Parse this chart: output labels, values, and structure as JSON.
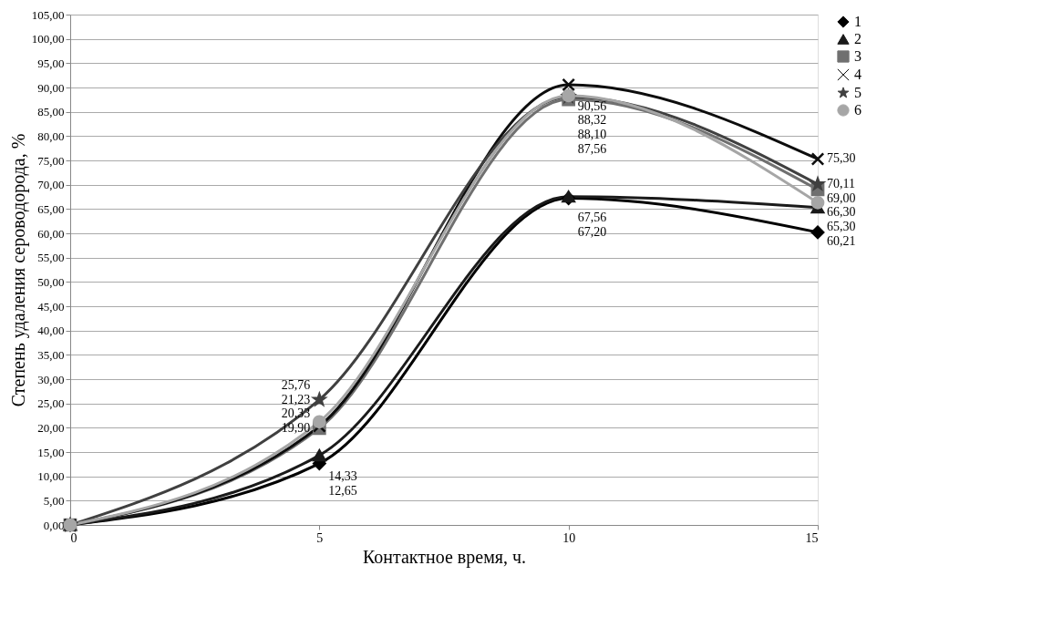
{
  "chart_data": {
    "type": "line",
    "xlabel": "Контактное время, ч.",
    "ylabel": "Степень удаления сероводорода, %",
    "x": [
      0,
      5,
      10,
      15
    ],
    "xlim": [
      0,
      15
    ],
    "xticks": [
      0,
      5,
      10,
      15
    ],
    "ylim": [
      0,
      105
    ],
    "yticks": [
      {
        "value": 0,
        "label": "0,00"
      },
      {
        "value": 5,
        "label": "5,00"
      },
      {
        "value": 10,
        "label": "10,00"
      },
      {
        "value": 15,
        "label": "15,00"
      },
      {
        "value": 20,
        "label": "20,00"
      },
      {
        "value": 25,
        "label": "25,00"
      },
      {
        "value": 30,
        "label": "30,00"
      },
      {
        "value": 35,
        "label": "35,00"
      },
      {
        "value": 40,
        "label": "40,00"
      },
      {
        "value": 45,
        "label": "45,00"
      },
      {
        "value": 50,
        "label": "50,00"
      },
      {
        "value": 55,
        "label": "55,00"
      },
      {
        "value": 60,
        "label": "60,00"
      },
      {
        "value": 65,
        "label": "65,00"
      },
      {
        "value": 70,
        "label": "70,00"
      },
      {
        "value": 75,
        "label": "75,00"
      },
      {
        "value": 80,
        "label": "80,00"
      },
      {
        "value": 85,
        "label": "85,00"
      },
      {
        "value": 90,
        "label": "90,00"
      },
      {
        "value": 95,
        "label": "95,00"
      },
      {
        "value": 100,
        "label": "100,00"
      },
      {
        "value": 105,
        "label": "105,00"
      }
    ],
    "grid": "y",
    "legend": "right",
    "line_style": "solid",
    "series": [
      {
        "name": "1",
        "color": "#000000",
        "marker": "diamond",
        "values": [
          0,
          12.65,
          67.2,
          60.21
        ],
        "value_labels": [
          null,
          "12,65",
          "67,20",
          "60,21"
        ]
      },
      {
        "name": "2",
        "color": "#1a1a1a",
        "marker": "triangle",
        "values": [
          0,
          14.33,
          67.56,
          65.3
        ],
        "value_labels": [
          null,
          "14,33",
          "67,56",
          "65,30"
        ]
      },
      {
        "name": "3",
        "color": "#707070",
        "marker": "square",
        "values": [
          0,
          19.9,
          87.56,
          69.0
        ],
        "value_labels": [
          null,
          "19,90",
          "87,56",
          "69,00"
        ]
      },
      {
        "name": "4",
        "color": "#0d0d0d",
        "marker": "cross",
        "values": [
          0,
          20.33,
          90.56,
          75.3
        ],
        "value_labels": [
          null,
          "20,33",
          "90,56",
          "75,30"
        ]
      },
      {
        "name": "5",
        "color": "#404040",
        "marker": "star",
        "values": [
          0,
          25.76,
          88.1,
          70.11
        ],
        "value_labels": [
          null,
          "25,76",
          "88,10",
          "70,11"
        ]
      },
      {
        "name": "6",
        "color": "#a6a6a6",
        "marker": "circle",
        "values": [
          0,
          21.23,
          88.32,
          66.3
        ],
        "value_labels": [
          null,
          "21,23",
          "88,32",
          "66,30"
        ]
      }
    ]
  }
}
